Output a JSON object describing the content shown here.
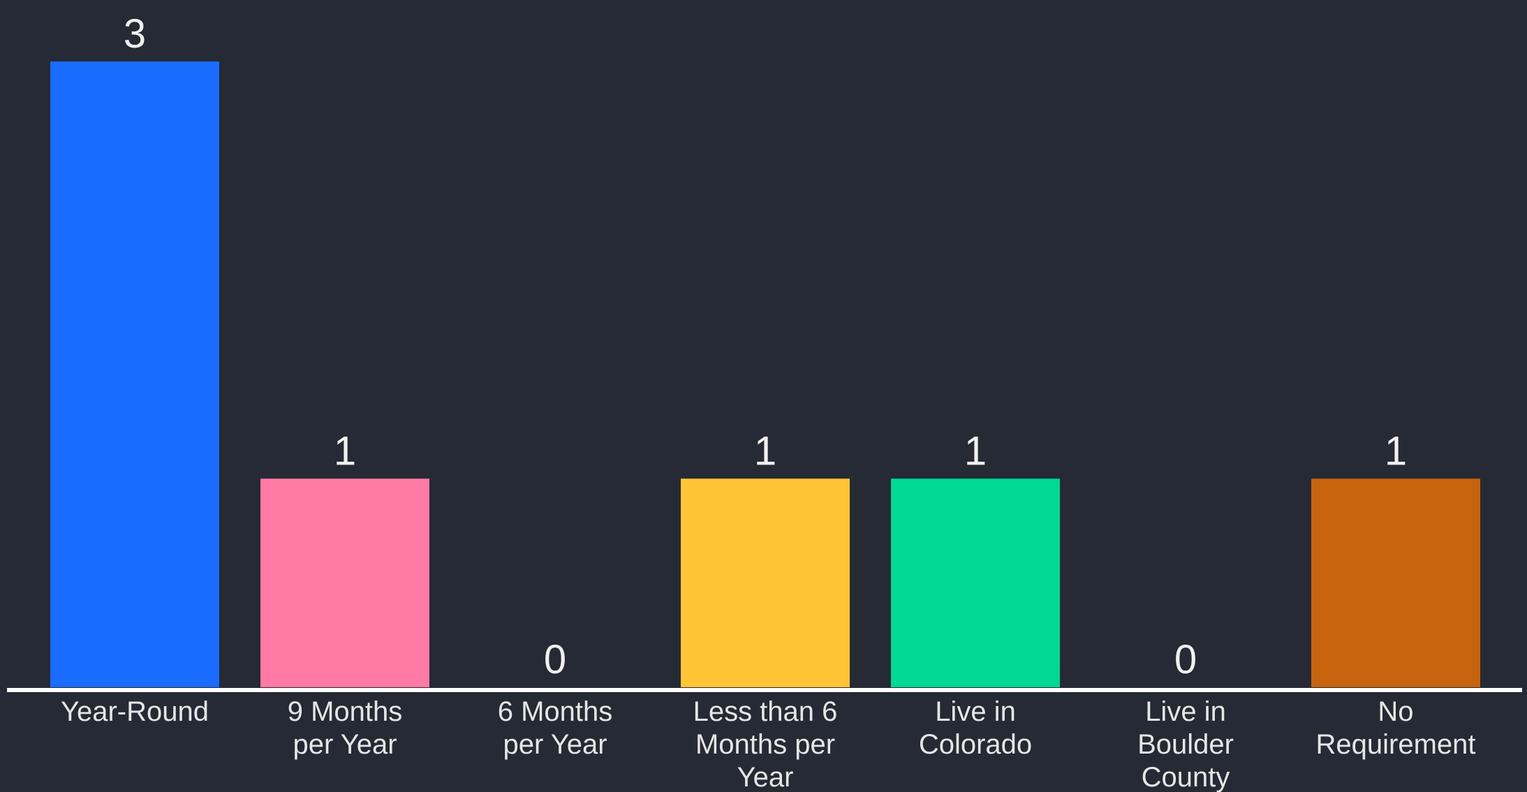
{
  "chart_data": {
    "type": "bar",
    "categories": [
      [
        "Year-Round"
      ],
      [
        "9 Months",
        "per Year"
      ],
      [
        "6 Months",
        "per Year"
      ],
      [
        "Less than 6",
        "Months per",
        "Year"
      ],
      [
        "Live in",
        "Colorado"
      ],
      [
        "Live in",
        "Boulder",
        "County"
      ],
      [
        "No",
        "Requirement"
      ]
    ],
    "values": [
      3,
      1,
      0,
      1,
      1,
      0,
      1
    ],
    "colors": [
      "#1a6cff",
      "#ff7aa5",
      "#c8c8c8",
      "#ffc436",
      "#00d993",
      "#c8c8c8",
      "#c8640d"
    ],
    "ylim": [
      0,
      3
    ],
    "grid": false,
    "data_labels": true
  },
  "style": {
    "background": "#252a34",
    "axis_color": "#ffffff",
    "text_color": "#e6e6e6"
  }
}
